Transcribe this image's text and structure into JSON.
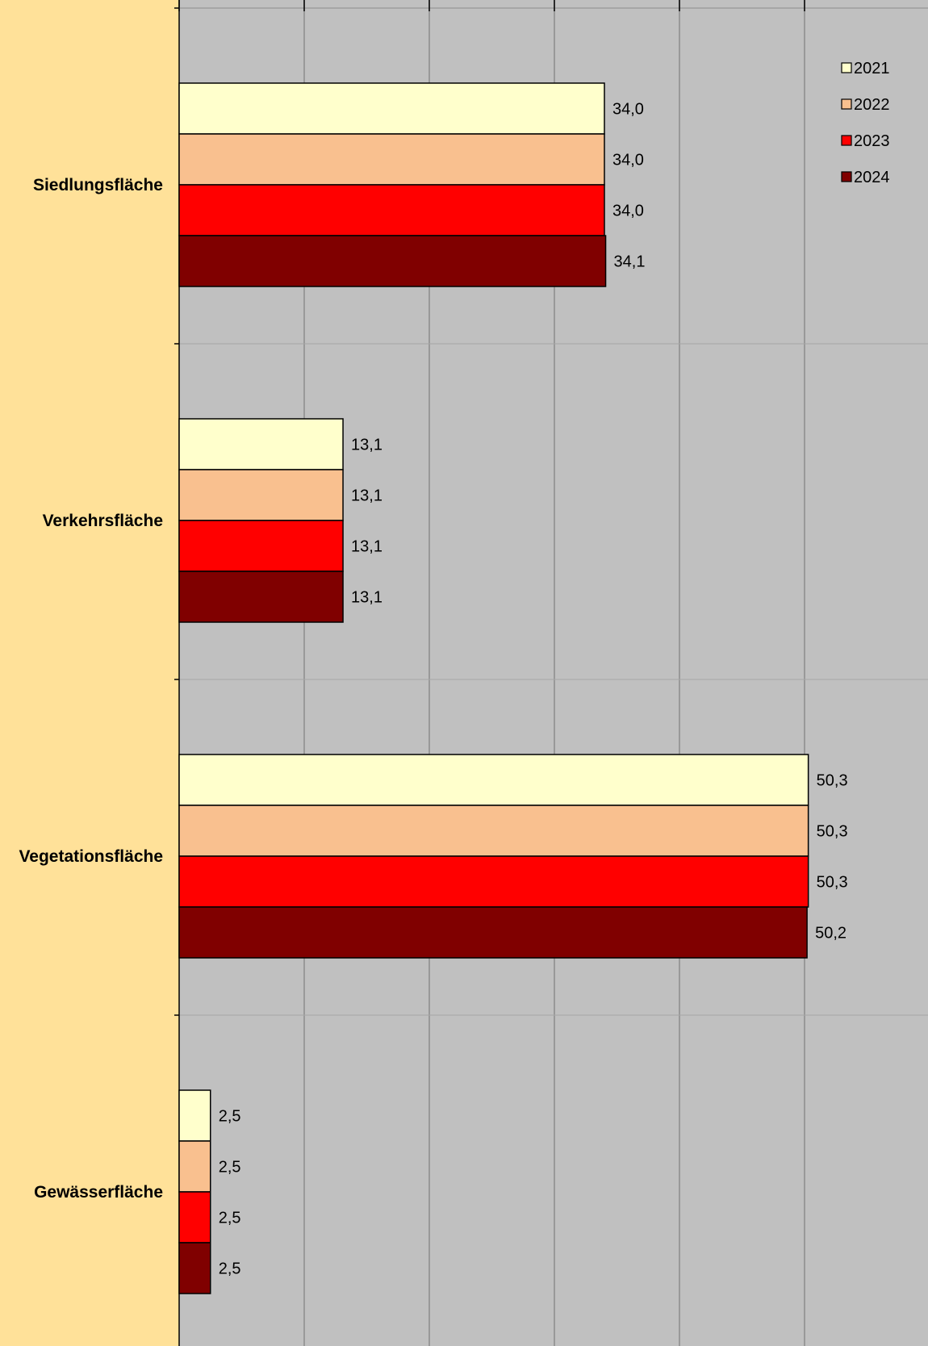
{
  "chart_data": {
    "type": "bar",
    "orientation": "horizontal",
    "categories": [
      "Siedlungsfläche",
      "Verkehrsfläche",
      "Vegetationsfläche",
      "Gewässerfläche"
    ],
    "series": [
      {
        "name": "2021",
        "color": "#FFFFCC",
        "values": [
          34.0,
          13.1,
          50.3,
          2.5
        ],
        "labels": [
          "34,0",
          "13,1",
          "50,3",
          "2,5"
        ]
      },
      {
        "name": "2022",
        "color": "#F9C08F",
        "values": [
          34.0,
          13.1,
          50.3,
          2.5
        ],
        "labels": [
          "34,0",
          "13,1",
          "50,3",
          "2,5"
        ]
      },
      {
        "name": "2023",
        "color": "#FF0000",
        "values": [
          34.0,
          13.1,
          50.3,
          2.5
        ],
        "labels": [
          "34,0",
          "13,1",
          "50,3",
          "2,5"
        ]
      },
      {
        "name": "2024",
        "color": "#800000",
        "values": [
          34.1,
          13.1,
          50.2,
          2.5
        ],
        "labels": [
          "34,1",
          "13,1",
          "50,2",
          "2,5"
        ]
      }
    ],
    "xlim": [
      0,
      60
    ],
    "grid": true,
    "legend": "top-right",
    "plot_background": "#C0C0C0",
    "chart_background": "#FFE199"
  }
}
